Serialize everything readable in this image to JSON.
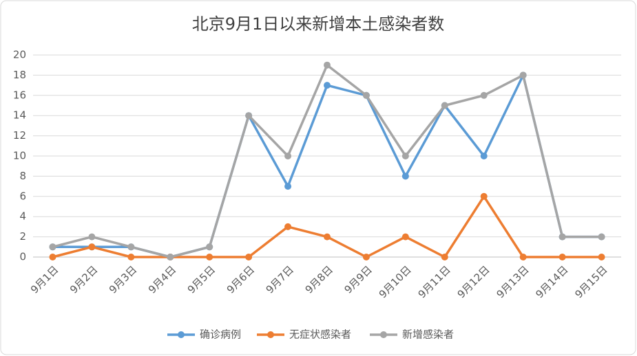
{
  "chart_data": {
    "type": "line",
    "title": "北京9月1日以来新增本土感染者数",
    "categories": [
      "9月1日",
      "9月2日",
      "9月3日",
      "9月4日",
      "9月5日",
      "9月6日",
      "9月7日",
      "9月8日",
      "9月9日",
      "9月10日",
      "9月11日",
      "9月12日",
      "9月13日",
      "9月14日",
      "9月15日"
    ],
    "series": [
      {
        "name": "确诊病例",
        "color": "#5b9bd5",
        "values": [
          1,
          1,
          1,
          0,
          1,
          14,
          7,
          17,
          16,
          8,
          15,
          10,
          18,
          2,
          2
        ]
      },
      {
        "name": "无症状感染者",
        "color": "#ed7d31",
        "values": [
          0,
          1,
          0,
          0,
          0,
          0,
          3,
          2,
          0,
          2,
          0,
          6,
          0,
          0,
          0
        ]
      },
      {
        "name": "新增感染者",
        "color": "#a5a5a5",
        "values": [
          1,
          2,
          1,
          0,
          1,
          14,
          10,
          19,
          16,
          10,
          15,
          16,
          18,
          2,
          2
        ]
      }
    ],
    "ylim": [
      0,
      20
    ],
    "yticks": [
      0,
      2,
      4,
      6,
      8,
      10,
      12,
      14,
      16,
      18,
      20
    ],
    "grid": true,
    "legend": "bottom"
  }
}
